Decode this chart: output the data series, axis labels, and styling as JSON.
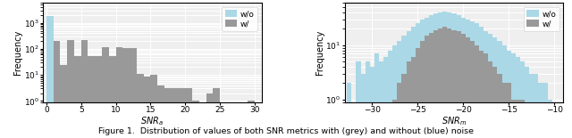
{
  "left_xlabel": "$SNR_a$",
  "right_xlabel": "$SNR_m$",
  "ylabel": "Frequency",
  "legend_labels": [
    "w/o",
    "w/"
  ],
  "color_wo": "#aad8e6",
  "color_w": "#999999",
  "left_wo_heights": [
    1800,
    0,
    0,
    0,
    0,
    0,
    0,
    0,
    0,
    0,
    0,
    0,
    0,
    0,
    0,
    0,
    0,
    0,
    0,
    0,
    0,
    0,
    0,
    0,
    0,
    0,
    0,
    0,
    0,
    0
  ],
  "left_w_heights": [
    0,
    200,
    25,
    220,
    55,
    220,
    55,
    55,
    115,
    55,
    115,
    110,
    110,
    11,
    9,
    10,
    4,
    3,
    3,
    3,
    3,
    1,
    0,
    2,
    3,
    0,
    0,
    0,
    0,
    1
  ],
  "left_xlim": [
    -0.5,
    31
  ],
  "left_ylim": [
    0.9,
    6000
  ],
  "left_yticks": [
    1,
    10,
    100,
    1000
  ],
  "left_xticks": [
    0,
    5,
    10,
    15,
    20,
    25,
    30
  ],
  "right_xlim": [
    -33,
    -9
  ],
  "right_ylim": [
    0.9,
    60
  ],
  "right_xticks": [
    -30,
    -25,
    -20,
    -15,
    -10
  ],
  "figure_caption": "Figure 1.  Distribution of values of both SNR metrics with (grey) and without (blue) noise",
  "background_color": "#efefef",
  "right_wo_bin_centers": [
    -33.0,
    -32.5,
    -32.0,
    -31.5,
    -31.0,
    -30.5,
    -30.0,
    -29.5,
    -29.0,
    -28.5,
    -28.0,
    -27.5,
    -27.0,
    -26.5,
    -26.0,
    -25.5,
    -25.0,
    -24.5,
    -24.0,
    -23.5,
    -23.0,
    -22.5,
    -22.0,
    -21.5,
    -21.0,
    -20.5,
    -20.0,
    -19.5,
    -19.0,
    -18.5,
    -18.0,
    -17.5,
    -17.0,
    -16.5,
    -16.0,
    -15.5,
    -15.0,
    -14.5,
    -14.0,
    -13.5,
    -13.0,
    -12.5,
    -12.0,
    -11.5,
    -11.0,
    -10.5
  ],
  "right_wo_heights": [
    0,
    2,
    0,
    5,
    3,
    5,
    4,
    7,
    5,
    6,
    8,
    10,
    12,
    15,
    18,
    22,
    25,
    30,
    32,
    35,
    38,
    40,
    42,
    40,
    38,
    35,
    32,
    30,
    27,
    25,
    22,
    18,
    16,
    14,
    12,
    10,
    8,
    7,
    6,
    5,
    4,
    3,
    3,
    2,
    2,
    1
  ],
  "right_w_heights": [
    0,
    0,
    0,
    0,
    0,
    0,
    0,
    0,
    0,
    0,
    0,
    1,
    2,
    3,
    5,
    6,
    9,
    12,
    15,
    17,
    19,
    20,
    22,
    20,
    19,
    18,
    16,
    14,
    12,
    10,
    8,
    7,
    5,
    4,
    3,
    2,
    2,
    1,
    1,
    1,
    0,
    0,
    0,
    0,
    0,
    0
  ]
}
